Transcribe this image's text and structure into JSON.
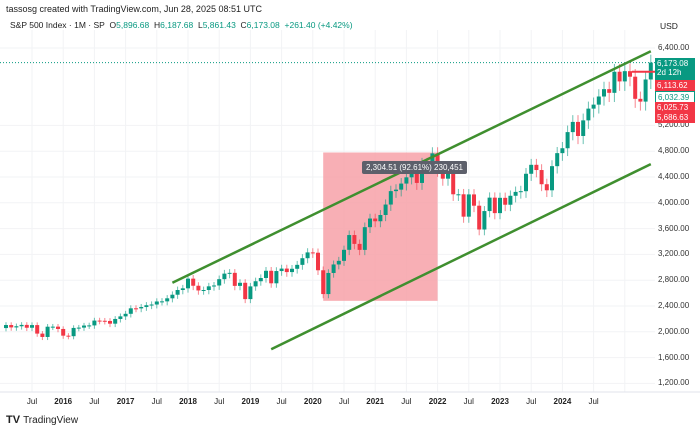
{
  "credit": "tassosg created with TradingView.com, Jun 28, 2025 08:51 UTC",
  "legend": {
    "symbol": "S&P 500 Index · 1M · SP",
    "o_label": "O",
    "o": "5,896.68",
    "h_label": "H",
    "h": "6,187.68",
    "l_label": "L",
    "l": "5,861.43",
    "c_label": "C",
    "c": "6,173.08",
    "change": "+261.40 (+4.42%)"
  },
  "currency": "USD",
  "measure": "2,304.51 (92.61%) 230,451",
  "price_labels": {
    "last": "6,173.08",
    "countdown": "2d 12h",
    "a": "6,113.62",
    "b": "6,032.39",
    "c": "6,025.73",
    "d": "5,686.63"
  },
  "colors": {
    "up": "#089981",
    "down": "#f23645",
    "channel": "#3f8f2f",
    "range": "#f7a1a8"
  },
  "brand": "TradingView",
  "chart_data": {
    "type": "candlestick",
    "interval": "1M",
    "ylim": [
      1200,
      6600
    ],
    "y_ticks": [
      "6,400.00",
      "5,200.00",
      "4,800.00",
      "4,400.00",
      "4,000.00",
      "3,600.00",
      "3,200.00",
      "2,800.00",
      "2,400.00",
      "2,000.00",
      "1,600.00",
      "1,200.00"
    ],
    "y_tick_values": [
      6400,
      5200,
      4800,
      4400,
      4000,
      3600,
      3200,
      2800,
      2400,
      2000,
      1600,
      1200
    ],
    "x_ticks": [
      "Jul",
      "2016",
      "Jul",
      "2017",
      "Jul",
      "2018",
      "Jul",
      "2019",
      "Jul",
      "2020",
      "Jul",
      "2021",
      "Jul",
      "2022",
      "Jul",
      "2023",
      "Jul",
      "2024",
      "Jul"
    ],
    "start": "2015-02",
    "closes": [
      2105,
      2068,
      2086,
      2107,
      2063,
      2104,
      1972,
      1920,
      2079,
      2080,
      2044,
      1940,
      1932,
      2060,
      2065,
      2097,
      2099,
      2174,
      2171,
      2168,
      2126,
      2199,
      2239,
      2279,
      2364,
      2363,
      2384,
      2412,
      2423,
      2470,
      2472,
      2519,
      2575,
      2648,
      2674,
      2824,
      2714,
      2641,
      2648,
      2705,
      2718,
      2816,
      2902,
      2914,
      2712,
      2760,
      2507,
      2704,
      2784,
      2834,
      2946,
      2752,
      2942,
      2980,
      2926,
      2977,
      3038,
      3141,
      3231,
      3226,
      2954,
      2585,
      2912,
      3044,
      3100,
      3271,
      3500,
      3363,
      3270,
      3622,
      3756,
      3714,
      3811,
      3973,
      4181,
      4204,
      4298,
      4395,
      4523,
      4308,
      4605,
      4567,
      4766,
      4516,
      4374,
      4530,
      4132,
      4132,
      3785,
      4130,
      3955,
      3586,
      3872,
      4080,
      3840,
      4077,
      3970,
      4109,
      4169,
      4180,
      4450,
      4589,
      4508,
      4288,
      4194,
      4568,
      4770,
      4846,
      5096,
      5254,
      5036,
      5278,
      5460,
      5522,
      5648,
      5762,
      5705,
      6032,
      5882,
      6041,
      5955,
      5612,
      5569,
      5912,
      6173
    ],
    "first_open": 2058,
    "channel_upper": {
      "from": [
        "2017-10",
        2760
      ],
      "to": [
        "2025-06",
        6350
      ]
    },
    "channel_lower": {
      "from": [
        "2019-05",
        1730
      ],
      "to": [
        "2025-06",
        4600
      ]
    },
    "measured_range": {
      "from": [
        "2020-03",
        2480
      ],
      "to": [
        "2022-01",
        4780
      ],
      "change": "2,304.51 (92.61%)"
    }
  }
}
